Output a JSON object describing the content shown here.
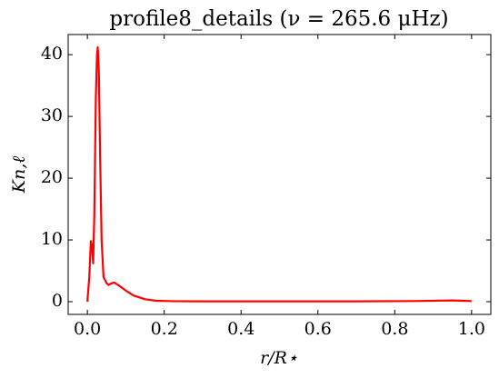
{
  "chart_data": {
    "type": "line",
    "title": "profile8_details (ν = 265.6 μHz)",
    "xlabel": "r/R⋆",
    "ylabel": "Kn,ℓ",
    "x": [
      0,
      0.005,
      0.009,
      0.012,
      0.015,
      0.018,
      0.022,
      0.025,
      0.027,
      0.03,
      0.033,
      0.037,
      0.042,
      0.05,
      0.055,
      0.06,
      0.07,
      0.08,
      0.1,
      0.12,
      0.15,
      0.18,
      0.22,
      0.3,
      0.5,
      0.7,
      0.85,
      0.95,
      1.0
    ],
    "series": [
      {
        "color": "#ff0000",
        "values": [
          0,
          4,
          9.8,
          9,
          6.2,
          14,
          33,
          40,
          41.2,
          37,
          24,
          10,
          4,
          3,
          2.7,
          2.9,
          3.1,
          2.7,
          1.8,
          1,
          0.4,
          0.15,
          0.08,
          0.05,
          0.05,
          0.05,
          0.1,
          0.2,
          0.1
        ]
      }
    ],
    "xlim": [
      -0.05,
      1.05
    ],
    "ylim": [
      -2.06,
      43.26
    ],
    "xticks": [
      {
        "value": 0,
        "label": "0.0"
      },
      {
        "value": 0.2,
        "label": "0.2"
      },
      {
        "value": 0.4,
        "label": "0.4"
      },
      {
        "value": 0.6,
        "label": "0.6"
      },
      {
        "value": 0.8,
        "label": "0.8"
      },
      {
        "value": 1,
        "label": "1.0"
      }
    ],
    "yticks": [
      0,
      10,
      20,
      30,
      40
    ]
  }
}
